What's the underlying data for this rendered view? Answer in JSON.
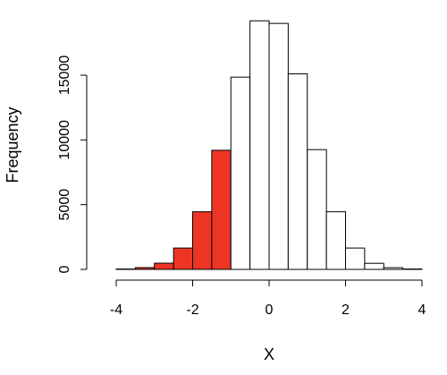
{
  "chart_data": {
    "type": "bar",
    "subtype": "histogram",
    "title": "",
    "xlabel": "X",
    "ylabel": "Frequency",
    "xlim": [
      -4.4,
      4.4
    ],
    "ylim": [
      0,
      19500
    ],
    "xticks": [
      -4,
      -2,
      0,
      2,
      4
    ],
    "yticks": [
      0,
      5000,
      10000,
      15000
    ],
    "xtick_labels": [
      "-4",
      "-2",
      "0",
      "2",
      "4"
    ],
    "ytick_labels": [
      "0",
      "5000",
      "10000",
      "15000"
    ],
    "bin_width": 0.5,
    "bins": [
      {
        "x0": -4.0,
        "x1": -3.5,
        "count": 30,
        "color": "#ffffff"
      },
      {
        "x0": -3.5,
        "x1": -3.0,
        "count": 140,
        "color": "#ee3524"
      },
      {
        "x0": -3.0,
        "x1": -2.5,
        "count": 480,
        "color": "#ee3524"
      },
      {
        "x0": -2.5,
        "x1": -2.0,
        "count": 1650,
        "color": "#ee3524"
      },
      {
        "x0": -2.0,
        "x1": -1.5,
        "count": 4450,
        "color": "#ee3524"
      },
      {
        "x0": -1.5,
        "x1": -1.0,
        "count": 9200,
        "color": "#ee3524"
      },
      {
        "x0": -1.0,
        "x1": -0.5,
        "count": 14850,
        "color": "#ffffff"
      },
      {
        "x0": -0.5,
        "x1": 0.0,
        "count": 19200,
        "color": "#ffffff"
      },
      {
        "x0": 0.0,
        "x1": 0.5,
        "count": 19000,
        "color": "#ffffff"
      },
      {
        "x0": 0.5,
        "x1": 1.0,
        "count": 15100,
        "color": "#ffffff"
      },
      {
        "x0": 1.0,
        "x1": 1.5,
        "count": 9250,
        "color": "#ffffff"
      },
      {
        "x0": 1.5,
        "x1": 2.0,
        "count": 4450,
        "color": "#ffffff"
      },
      {
        "x0": 2.0,
        "x1": 2.5,
        "count": 1650,
        "color": "#ffffff"
      },
      {
        "x0": 2.5,
        "x1": 3.0,
        "count": 470,
        "color": "#ffffff"
      },
      {
        "x0": 3.0,
        "x1": 3.5,
        "count": 130,
        "color": "#ffffff"
      },
      {
        "x0": 3.5,
        "x1": 4.0,
        "count": 30,
        "color": "#ffffff"
      }
    ],
    "highlight_color": "#ee3524",
    "base_color": "#ffffff",
    "grid": false
  }
}
